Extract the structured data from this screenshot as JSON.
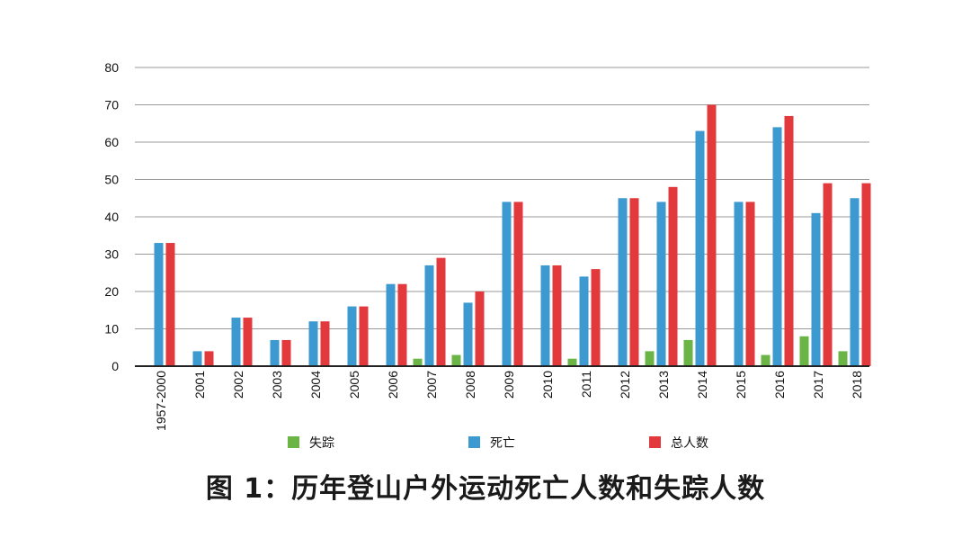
{
  "chart_data": {
    "type": "bar",
    "title": "图 1：历年登山户外运动死亡人数和失踪人数",
    "categories": [
      "1957-2000",
      "2001",
      "2002",
      "2003",
      "2004",
      "2005",
      "2006",
      "2007",
      "2008",
      "2009",
      "2010",
      "2011",
      "2012",
      "2013",
      "2014",
      "2015",
      "2016",
      "2017",
      "2018"
    ],
    "series": [
      {
        "name": "失踪",
        "color": "#6ab545",
        "values": [
          0,
          0,
          0,
          0,
          0,
          0,
          0,
          2,
          3,
          0,
          0,
          2,
          0,
          4,
          7,
          0,
          3,
          8,
          4
        ]
      },
      {
        "name": "死亡",
        "color": "#3d9ad1",
        "values": [
          33,
          4,
          13,
          7,
          12,
          16,
          22,
          27,
          17,
          44,
          27,
          24,
          45,
          44,
          63,
          44,
          64,
          41,
          45
        ]
      },
      {
        "name": "总人数",
        "color": "#e2393d",
        "values": [
          33,
          4,
          13,
          7,
          12,
          16,
          22,
          29,
          20,
          44,
          27,
          26,
          45,
          48,
          70,
          44,
          67,
          49,
          49
        ]
      }
    ],
    "xlabel": "",
    "ylabel": "",
    "ylim": [
      0,
      80
    ],
    "yticks": [
      0,
      10,
      20,
      30,
      40,
      50,
      60,
      70,
      80
    ],
    "grid": true,
    "legend_position": "bottom"
  }
}
